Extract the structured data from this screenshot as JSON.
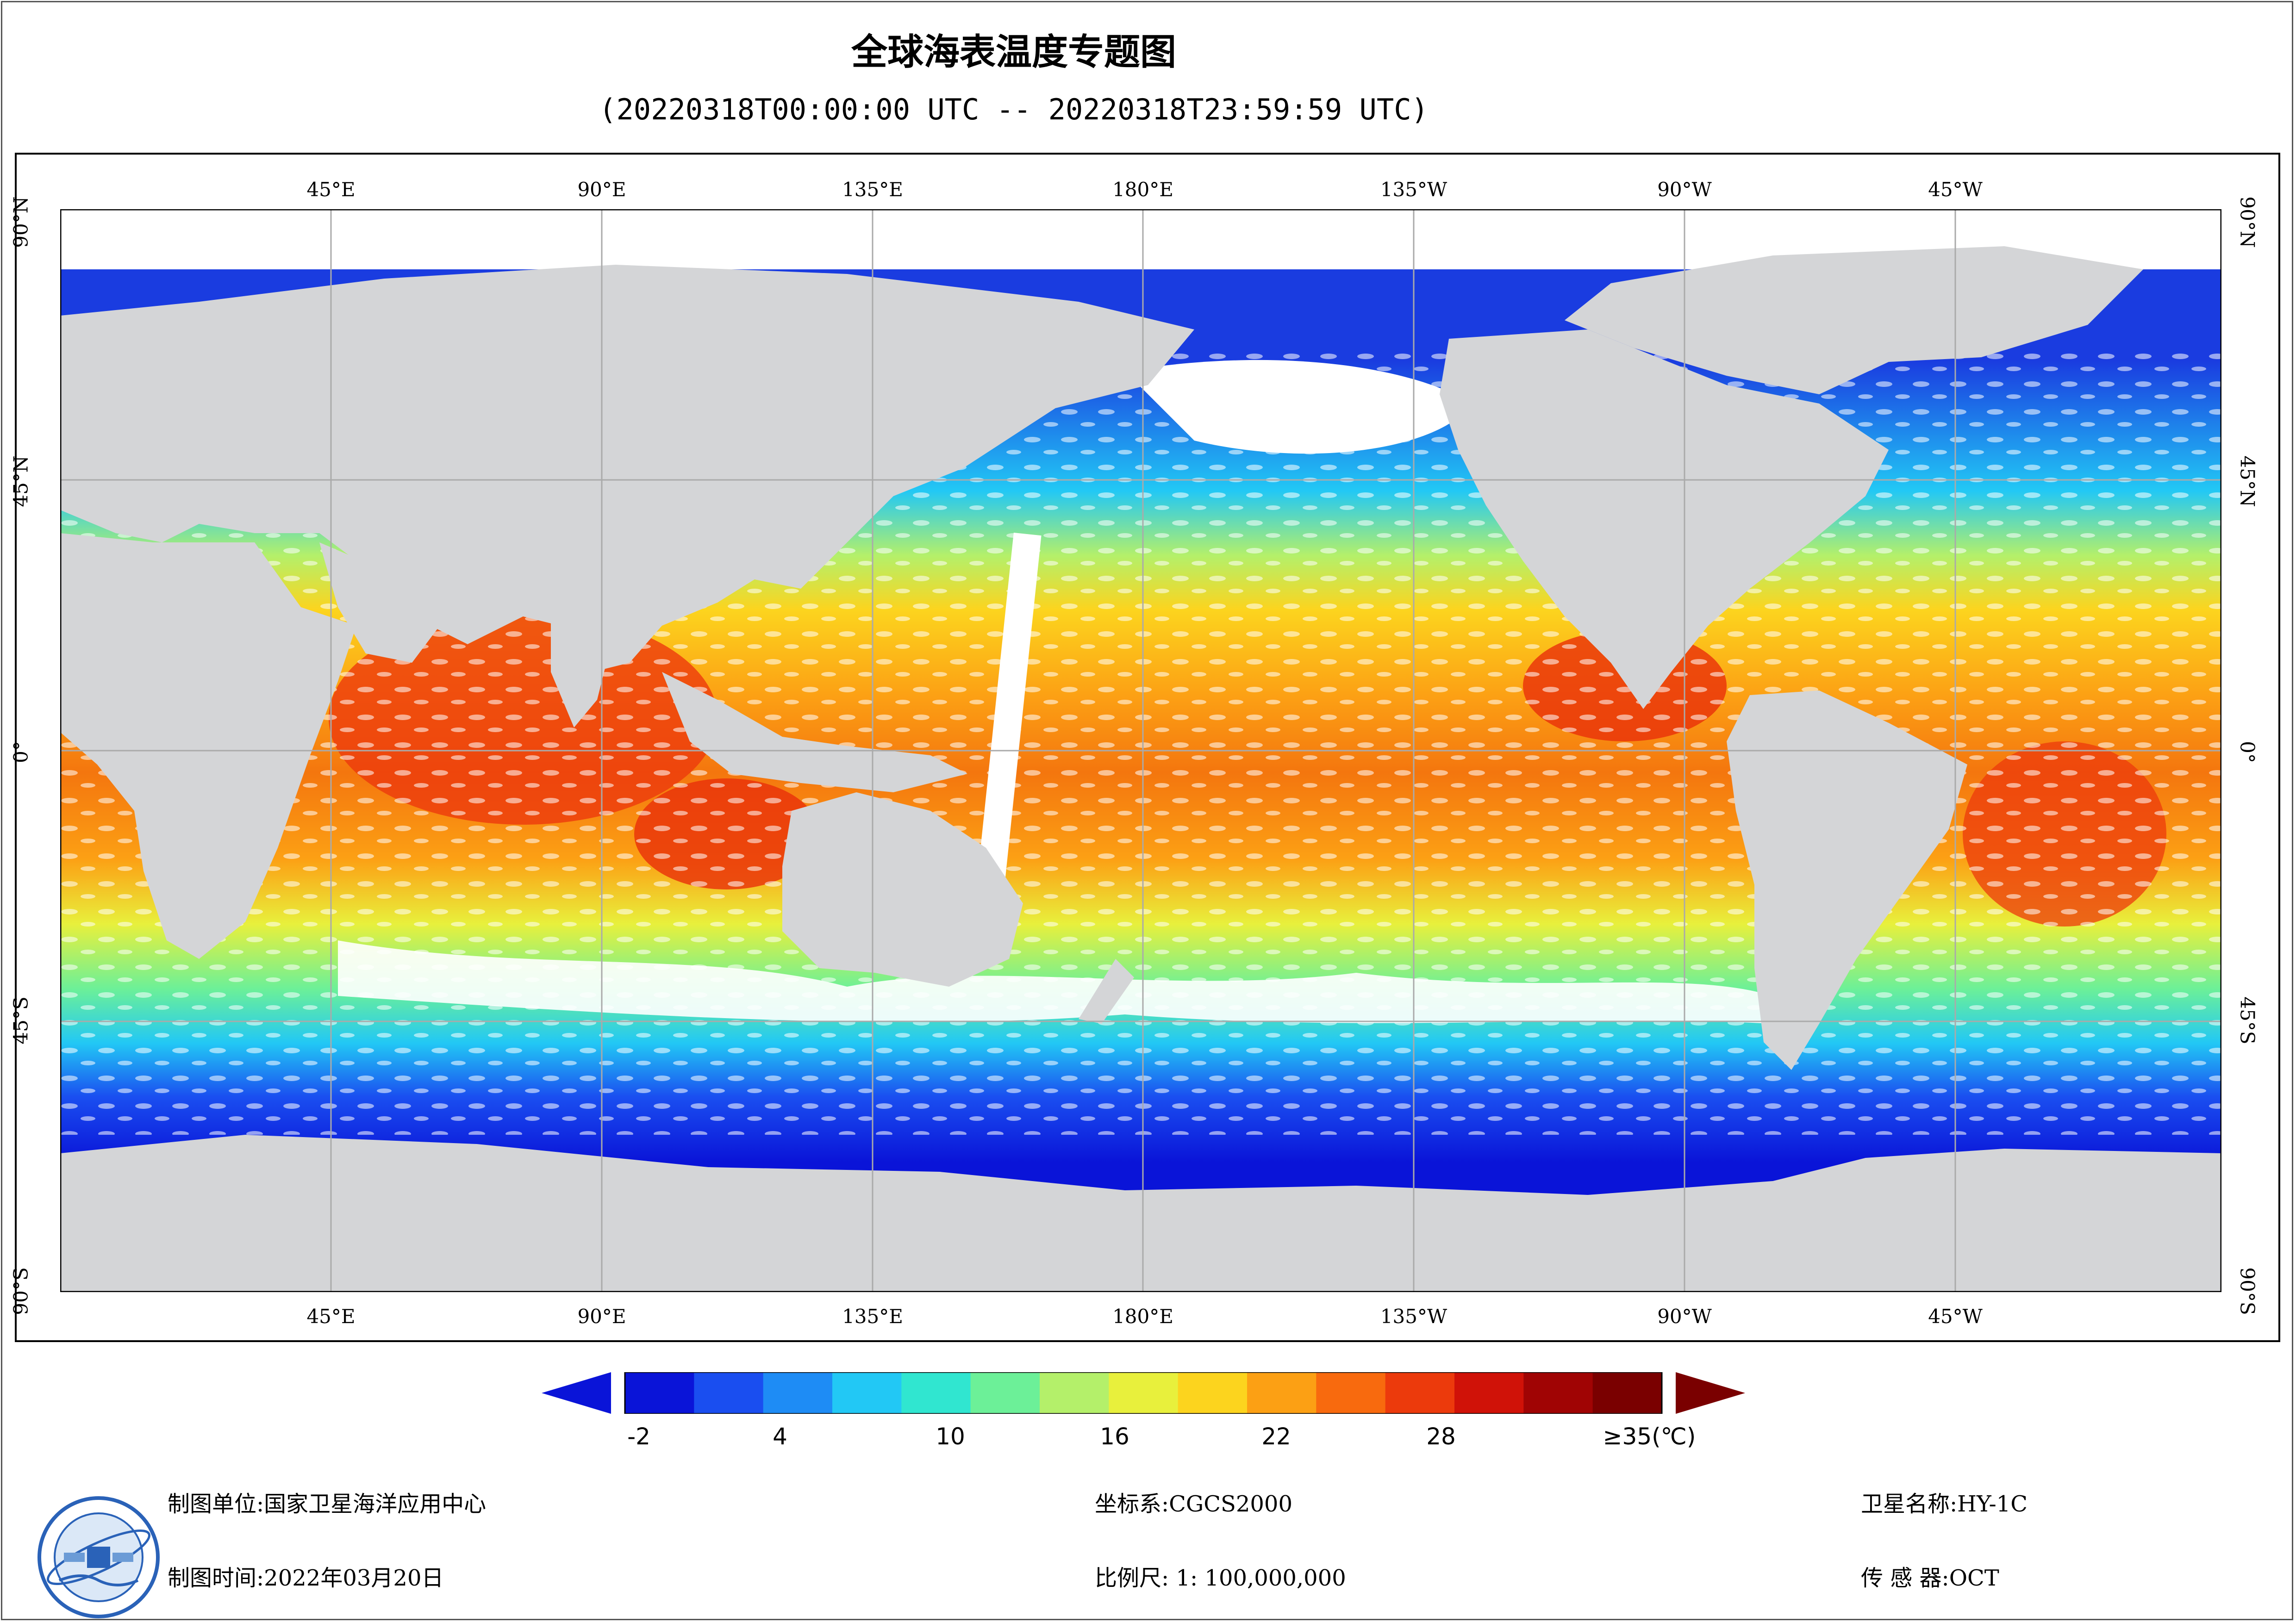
{
  "title": "全球海表温度专题图",
  "subtitle": "(20220318T00:00:00 UTC -- 20220318T23:59:59 UTC)",
  "axes": {
    "lon_labels": [
      "45°E",
      "90°E",
      "135°E",
      "180°E",
      "135°W",
      "90°W",
      "45°W"
    ],
    "lat_labels": [
      "90°N",
      "45°N",
      "0°",
      "45°S",
      "90°S"
    ]
  },
  "legend": {
    "ticks": [
      "-2",
      "4",
      "10",
      "16",
      "22",
      "28",
      "≥35(℃)"
    ],
    "range": [
      -2,
      35
    ],
    "colors": [
      "#0a14d8",
      "#1a4ef0",
      "#1e8cf5",
      "#22c8f5",
      "#30e6d0",
      "#6cf098",
      "#b4f06a",
      "#e8f03c",
      "#fcd41e",
      "#fca014",
      "#f86a0e",
      "#ec3a0c",
      "#d01208",
      "#a00404",
      "#7a0000"
    ]
  },
  "info": {
    "unit": "制图单位:国家卫星海洋应用中心",
    "time": "制图时间:2022年03月20日",
    "crs": "坐标系:CGCS2000",
    "scale": "比例尺: 1: 100,000,000",
    "satellite": "卫星名称:HY-1C",
    "sensor": "传  感  器:OCT"
  },
  "map": {
    "land_color": "#d4d5d7",
    "nodata_color": "#ffffff",
    "grid_color": "#aaaaaa"
  }
}
